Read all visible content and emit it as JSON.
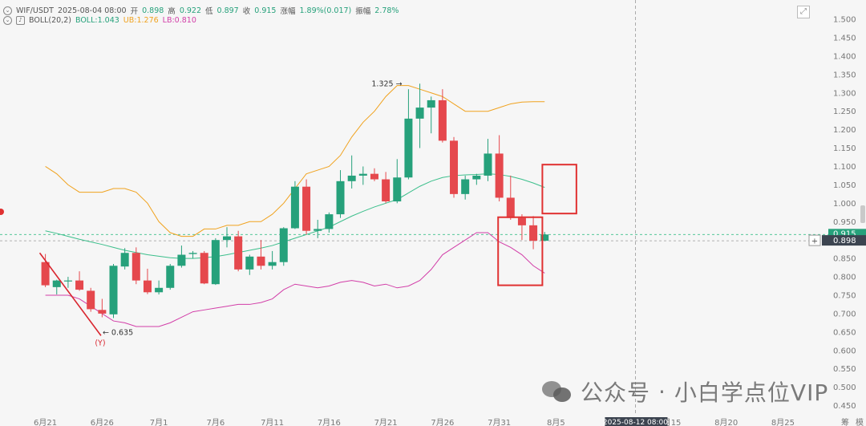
{
  "header": {
    "symbol": "WIF/USDT",
    "datetime": "2025-08-04 08:00",
    "open_label": "开",
    "open": "0.898",
    "high_label": "高",
    "high": "0.922",
    "low_label": "低",
    "low": "0.897",
    "close_label": "收",
    "close": "0.915",
    "change_label": "涨幅",
    "change": "1.89%(0.017)",
    "amp_label": "振幅",
    "amp": "2.78%",
    "indicator": "BOLL(20,2)",
    "boll_label": "BOLL:1.043",
    "ub_label": "UB:1.276",
    "lb_label": "LB:0.810"
  },
  "price_badges": {
    "current": "0.915",
    "crosshair": "0.898"
  },
  "crosshair_time": "2025-08-12 08:00",
  "annotations": {
    "high": "1.325",
    "low": "0.635",
    "low_marker": "(Y)"
  },
  "axis_right_partial": [
    "筹",
    "模"
  ],
  "watermark": {
    "prefix": "公众号",
    "separator": "·",
    "name": "小白学点位VIP"
  },
  "colors": {
    "up": "#26a17b",
    "down": "#e5484d",
    "mid": "#3cbf8c",
    "upper": "#f0a21e",
    "lower": "#d23ea8",
    "box": "#e03131",
    "trend": "#d9262f"
  },
  "chart_data": {
    "type": "candlestick",
    "interval": "1 day",
    "y_axis": {
      "ticks": [
        0.45,
        0.5,
        0.55,
        0.6,
        0.65,
        0.7,
        0.75,
        0.8,
        0.85,
        0.9,
        0.95,
        1.0,
        1.05,
        1.1,
        1.15,
        1.2,
        1.25,
        1.3,
        1.35,
        1.4,
        1.45,
        1.5
      ],
      "tick_labels": [
        "0.450",
        "0.500",
        "0.550",
        "0.600",
        "0.650",
        "0.700",
        "0.750",
        "0.800",
        "0.850",
        "0.900",
        "0.950",
        "1.000",
        "1.050",
        "1.100",
        "1.150",
        "1.200",
        "1.250",
        "1.300",
        "1.350",
        "1.400",
        "1.450",
        "1.500"
      ],
      "range": [
        0.425,
        1.535
      ]
    },
    "x_axis": {
      "labels": [
        "6月21",
        "6月26",
        "7月1",
        "7月6",
        "7月11",
        "7月16",
        "7月21",
        "7月26",
        "7月31",
        "8月5",
        "8月15",
        "8月20",
        "8月25"
      ],
      "label_day_index": [
        0,
        5,
        10,
        15,
        20,
        25,
        30,
        35,
        40,
        45,
        55,
        60,
        65
      ],
      "start_date": "2025-06-21",
      "range_days": [
        -4,
        69
      ]
    },
    "candles": [
      {
        "date": "2025-06-21",
        "o": 0.84,
        "h": 0.862,
        "l": 0.772,
        "c": 0.777
      },
      {
        "date": "2025-06-22",
        "o": 0.772,
        "h": 0.792,
        "l": 0.752,
        "c": 0.79
      },
      {
        "date": "2025-06-23",
        "o": 0.788,
        "h": 0.8,
        "l": 0.77,
        "c": 0.79
      },
      {
        "date": "2025-06-24",
        "o": 0.79,
        "h": 0.815,
        "l": 0.762,
        "c": 0.765
      },
      {
        "date": "2025-06-25",
        "o": 0.762,
        "h": 0.77,
        "l": 0.705,
        "c": 0.712
      },
      {
        "date": "2025-06-26",
        "o": 0.71,
        "h": 0.74,
        "l": 0.69,
        "c": 0.7
      },
      {
        "date": "2025-06-27",
        "o": 0.698,
        "h": 0.835,
        "l": 0.688,
        "c": 0.83
      },
      {
        "date": "2025-06-28",
        "o": 0.828,
        "h": 0.878,
        "l": 0.82,
        "c": 0.865
      },
      {
        "date": "2025-06-29",
        "o": 0.865,
        "h": 0.88,
        "l": 0.78,
        "c": 0.79
      },
      {
        "date": "2025-06-30",
        "o": 0.79,
        "h": 0.822,
        "l": 0.753,
        "c": 0.758
      },
      {
        "date": "2025-07-01",
        "o": 0.758,
        "h": 0.79,
        "l": 0.752,
        "c": 0.77
      },
      {
        "date": "2025-07-02",
        "o": 0.77,
        "h": 0.835,
        "l": 0.765,
        "c": 0.83
      },
      {
        "date": "2025-07-03",
        "o": 0.83,
        "h": 0.885,
        "l": 0.825,
        "c": 0.86
      },
      {
        "date": "2025-07-04",
        "o": 0.862,
        "h": 0.87,
        "l": 0.85,
        "c": 0.865
      },
      {
        "date": "2025-07-05",
        "o": 0.865,
        "h": 0.87,
        "l": 0.78,
        "c": 0.782
      },
      {
        "date": "2025-07-06",
        "o": 0.78,
        "h": 0.905,
        "l": 0.778,
        "c": 0.9
      },
      {
        "date": "2025-07-07",
        "o": 0.9,
        "h": 0.935,
        "l": 0.88,
        "c": 0.91
      },
      {
        "date": "2025-07-08",
        "o": 0.91,
        "h": 0.925,
        "l": 0.815,
        "c": 0.82
      },
      {
        "date": "2025-07-09",
        "o": 0.82,
        "h": 0.86,
        "l": 0.805,
        "c": 0.855
      },
      {
        "date": "2025-07-10",
        "o": 0.855,
        "h": 0.9,
        "l": 0.82,
        "c": 0.83
      },
      {
        "date": "2025-07-11",
        "o": 0.83,
        "h": 0.87,
        "l": 0.82,
        "c": 0.84
      },
      {
        "date": "2025-07-12",
        "o": 0.84,
        "h": 0.935,
        "l": 0.83,
        "c": 0.932
      },
      {
        "date": "2025-07-13",
        "o": 0.932,
        "h": 1.06,
        "l": 0.93,
        "c": 1.045
      },
      {
        "date": "2025-07-14",
        "o": 1.045,
        "h": 1.065,
        "l": 0.915,
        "c": 0.925
      },
      {
        "date": "2025-07-15",
        "o": 0.925,
        "h": 0.955,
        "l": 0.905,
        "c": 0.93
      },
      {
        "date": "2025-07-16",
        "o": 0.93,
        "h": 0.975,
        "l": 0.92,
        "c": 0.97
      },
      {
        "date": "2025-07-17",
        "o": 0.97,
        "h": 1.09,
        "l": 0.96,
        "c": 1.06
      },
      {
        "date": "2025-07-18",
        "o": 1.06,
        "h": 1.13,
        "l": 1.04,
        "c": 1.075
      },
      {
        "date": "2025-07-19",
        "o": 1.075,
        "h": 1.1,
        "l": 1.05,
        "c": 1.08
      },
      {
        "date": "2025-07-20",
        "o": 1.08,
        "h": 1.095,
        "l": 1.06,
        "c": 1.065
      },
      {
        "date": "2025-07-21",
        "o": 1.065,
        "h": 1.085,
        "l": 1.0,
        "c": 1.005
      },
      {
        "date": "2025-07-22",
        "o": 1.005,
        "h": 1.12,
        "l": 1.0,
        "c": 1.07
      },
      {
        "date": "2025-07-23",
        "o": 1.07,
        "h": 1.31,
        "l": 1.065,
        "c": 1.23
      },
      {
        "date": "2025-07-24",
        "o": 1.23,
        "h": 1.325,
        "l": 1.15,
        "c": 1.26
      },
      {
        "date": "2025-07-25",
        "o": 1.26,
        "h": 1.29,
        "l": 1.19,
        "c": 1.28
      },
      {
        "date": "2025-07-26",
        "o": 1.28,
        "h": 1.31,
        "l": 1.165,
        "c": 1.17
      },
      {
        "date": "2025-07-27",
        "o": 1.17,
        "h": 1.18,
        "l": 1.015,
        "c": 1.025
      },
      {
        "date": "2025-07-28",
        "o": 1.025,
        "h": 1.075,
        "l": 1.01,
        "c": 1.065
      },
      {
        "date": "2025-07-29",
        "o": 1.065,
        "h": 1.08,
        "l": 1.05,
        "c": 1.075
      },
      {
        "date": "2025-07-30",
        "o": 1.075,
        "h": 1.175,
        "l": 1.06,
        "c": 1.135
      },
      {
        "date": "2025-07-31",
        "o": 1.135,
        "h": 1.185,
        "l": 1.005,
        "c": 1.015
      },
      {
        "date": "2025-08-01",
        "o": 1.015,
        "h": 1.075,
        "l": 0.955,
        "c": 0.96
      },
      {
        "date": "2025-08-02",
        "o": 0.96,
        "h": 0.97,
        "l": 0.9,
        "c": 0.94
      },
      {
        "date": "2025-08-03",
        "o": 0.94,
        "h": 0.965,
        "l": 0.875,
        "c": 0.898
      },
      {
        "date": "2025-08-04",
        "o": 0.898,
        "h": 0.922,
        "l": 0.897,
        "c": 0.915
      }
    ],
    "boll": {
      "period": 20,
      "k": 2,
      "mid": [
        0.925,
        0.918,
        0.91,
        0.902,
        0.895,
        0.888,
        0.88,
        0.872,
        0.866,
        0.86,
        0.856,
        0.852,
        0.85,
        0.85,
        0.852,
        0.855,
        0.86,
        0.866,
        0.872,
        0.878,
        0.885,
        0.895,
        0.905,
        0.915,
        0.925,
        0.935,
        0.95,
        0.965,
        0.978,
        0.99,
        1.0,
        1.01,
        1.028,
        1.046,
        1.06,
        1.07,
        1.075,
        1.077,
        1.078,
        1.08,
        1.078,
        1.073,
        1.065,
        1.055,
        1.043
      ],
      "upper": [
        1.1,
        1.08,
        1.05,
        1.03,
        1.03,
        1.03,
        1.04,
        1.04,
        1.03,
        1.0,
        0.95,
        0.92,
        0.91,
        0.91,
        0.93,
        0.93,
        0.94,
        0.94,
        0.95,
        0.95,
        0.97,
        1.0,
        1.04,
        1.08,
        1.09,
        1.1,
        1.13,
        1.18,
        1.22,
        1.25,
        1.29,
        1.32,
        1.32,
        1.31,
        1.3,
        1.29,
        1.27,
        1.25,
        1.25,
        1.25,
        1.26,
        1.27,
        1.275,
        1.276,
        1.276
      ],
      "lower": [
        0.75,
        0.75,
        0.75,
        0.74,
        0.72,
        0.7,
        0.68,
        0.675,
        0.665,
        0.665,
        0.665,
        0.675,
        0.69,
        0.705,
        0.71,
        0.715,
        0.72,
        0.725,
        0.725,
        0.73,
        0.74,
        0.765,
        0.78,
        0.775,
        0.77,
        0.775,
        0.785,
        0.79,
        0.785,
        0.775,
        0.78,
        0.77,
        0.775,
        0.79,
        0.82,
        0.86,
        0.88,
        0.9,
        0.92,
        0.92,
        0.895,
        0.88,
        0.86,
        0.83,
        0.81
      ]
    },
    "reference_lines": [
      0.915,
      0.898
    ],
    "boxes": [
      {
        "x_days": [
          43.8,
          46.8
        ],
        "y": [
          0.972,
          1.105
        ]
      },
      {
        "x_days": [
          39.9,
          43.8
        ],
        "y": [
          0.777,
          0.962
        ]
      }
    ],
    "trendline": {
      "from": {
        "day": -0.5,
        "price": 0.865
      },
      "to": {
        "day": 4.9,
        "price": 0.64
      }
    }
  }
}
